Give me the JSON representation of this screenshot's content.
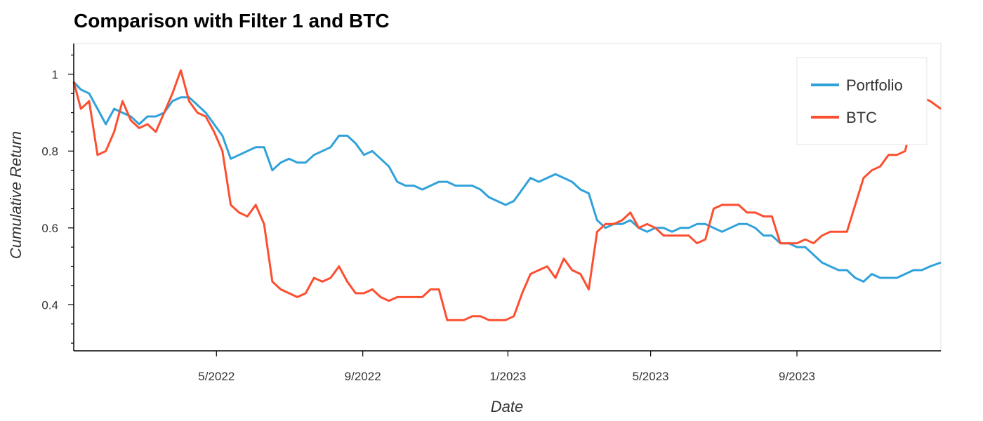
{
  "chart_data": {
    "type": "line",
    "title": "Comparison with Filter 1 and BTC",
    "xlabel": "Date",
    "ylabel": "Cumulative Return",
    "xlim": [
      "2022-01-01",
      "2023-12-31"
    ],
    "ylim": [
      0.28,
      1.08
    ],
    "x_ticks": [
      {
        "date": "2022-05-01",
        "label": "5/2022"
      },
      {
        "date": "2022-09-01",
        "label": "9/2022"
      },
      {
        "date": "2023-01-01",
        "label": "1/2023"
      },
      {
        "date": "2023-05-01",
        "label": "5/2023"
      },
      {
        "date": "2023-09-01",
        "label": "9/2023"
      }
    ],
    "y_ticks": [
      0.4,
      0.6,
      0.8,
      1
    ],
    "grid": false,
    "legend_position": "top-right",
    "series": [
      {
        "name": "Portfolio",
        "color": "#30a2da",
        "points": [
          [
            "2022-01-01",
            0.98
          ],
          [
            "2022-01-07",
            0.96
          ],
          [
            "2022-01-14",
            0.95
          ],
          [
            "2022-01-21",
            0.91
          ],
          [
            "2022-01-28",
            0.87
          ],
          [
            "2022-02-04",
            0.91
          ],
          [
            "2022-02-11",
            0.9
          ],
          [
            "2022-02-18",
            0.89
          ],
          [
            "2022-02-25",
            0.87
          ],
          [
            "2022-03-04",
            0.89
          ],
          [
            "2022-03-11",
            0.89
          ],
          [
            "2022-03-18",
            0.9
          ],
          [
            "2022-03-25",
            0.93
          ],
          [
            "2022-04-01",
            0.94
          ],
          [
            "2022-04-08",
            0.94
          ],
          [
            "2022-04-15",
            0.92
          ],
          [
            "2022-04-22",
            0.9
          ],
          [
            "2022-04-29",
            0.87
          ],
          [
            "2022-05-06",
            0.84
          ],
          [
            "2022-05-13",
            0.78
          ],
          [
            "2022-05-20",
            0.79
          ],
          [
            "2022-05-27",
            0.8
          ],
          [
            "2022-06-03",
            0.81
          ],
          [
            "2022-06-10",
            0.81
          ],
          [
            "2022-06-17",
            0.75
          ],
          [
            "2022-06-24",
            0.77
          ],
          [
            "2022-07-01",
            0.78
          ],
          [
            "2022-07-08",
            0.77
          ],
          [
            "2022-07-15",
            0.77
          ],
          [
            "2022-07-22",
            0.79
          ],
          [
            "2022-07-29",
            0.8
          ],
          [
            "2022-08-05",
            0.81
          ],
          [
            "2022-08-12",
            0.84
          ],
          [
            "2022-08-19",
            0.84
          ],
          [
            "2022-08-26",
            0.82
          ],
          [
            "2022-09-02",
            0.79
          ],
          [
            "2022-09-09",
            0.8
          ],
          [
            "2022-09-16",
            0.78
          ],
          [
            "2022-09-23",
            0.76
          ],
          [
            "2022-09-30",
            0.72
          ],
          [
            "2022-10-07",
            0.71
          ],
          [
            "2022-10-14",
            0.71
          ],
          [
            "2022-10-21",
            0.7
          ],
          [
            "2022-10-28",
            0.71
          ],
          [
            "2022-11-04",
            0.72
          ],
          [
            "2022-11-11",
            0.72
          ],
          [
            "2022-11-18",
            0.71
          ],
          [
            "2022-11-25",
            0.71
          ],
          [
            "2022-12-02",
            0.71
          ],
          [
            "2022-12-09",
            0.7
          ],
          [
            "2022-12-16",
            0.68
          ],
          [
            "2022-12-23",
            0.67
          ],
          [
            "2022-12-30",
            0.66
          ],
          [
            "2023-01-06",
            0.67
          ],
          [
            "2023-01-13",
            0.7
          ],
          [
            "2023-01-20",
            0.73
          ],
          [
            "2023-01-27",
            0.72
          ],
          [
            "2023-02-03",
            0.73
          ],
          [
            "2023-02-10",
            0.74
          ],
          [
            "2023-02-17",
            0.73
          ],
          [
            "2023-02-24",
            0.72
          ],
          [
            "2023-03-03",
            0.7
          ],
          [
            "2023-03-10",
            0.69
          ],
          [
            "2023-03-17",
            0.62
          ],
          [
            "2023-03-24",
            0.6
          ],
          [
            "2023-03-31",
            0.61
          ],
          [
            "2023-04-07",
            0.61
          ],
          [
            "2023-04-14",
            0.62
          ],
          [
            "2023-04-21",
            0.6
          ],
          [
            "2023-04-28",
            0.59
          ],
          [
            "2023-05-05",
            0.6
          ],
          [
            "2023-05-12",
            0.6
          ],
          [
            "2023-05-19",
            0.59
          ],
          [
            "2023-05-26",
            0.6
          ],
          [
            "2023-06-02",
            0.6
          ],
          [
            "2023-06-09",
            0.61
          ],
          [
            "2023-06-16",
            0.61
          ],
          [
            "2023-06-23",
            0.6
          ],
          [
            "2023-06-30",
            0.59
          ],
          [
            "2023-07-07",
            0.6
          ],
          [
            "2023-07-14",
            0.61
          ],
          [
            "2023-07-21",
            0.61
          ],
          [
            "2023-07-28",
            0.6
          ],
          [
            "2023-08-04",
            0.58
          ],
          [
            "2023-08-11",
            0.58
          ],
          [
            "2023-08-18",
            0.56
          ],
          [
            "2023-08-25",
            0.56
          ],
          [
            "2023-09-01",
            0.55
          ],
          [
            "2023-09-08",
            0.55
          ],
          [
            "2023-09-15",
            0.53
          ],
          [
            "2023-09-22",
            0.51
          ],
          [
            "2023-09-29",
            0.5
          ],
          [
            "2023-10-06",
            0.49
          ],
          [
            "2023-10-13",
            0.49
          ],
          [
            "2023-10-20",
            0.47
          ],
          [
            "2023-10-27",
            0.46
          ],
          [
            "2023-11-03",
            0.48
          ],
          [
            "2023-11-10",
            0.47
          ],
          [
            "2023-11-17",
            0.47
          ],
          [
            "2023-11-24",
            0.47
          ],
          [
            "2023-12-01",
            0.48
          ],
          [
            "2023-12-08",
            0.49
          ],
          [
            "2023-12-15",
            0.49
          ],
          [
            "2023-12-22",
            0.5
          ],
          [
            "2023-12-31",
            0.51
          ]
        ]
      },
      {
        "name": "BTC",
        "color": "#fc4f30",
        "points": [
          [
            "2022-01-01",
            0.98
          ],
          [
            "2022-01-07",
            0.91
          ],
          [
            "2022-01-14",
            0.93
          ],
          [
            "2022-01-21",
            0.79
          ],
          [
            "2022-01-28",
            0.8
          ],
          [
            "2022-02-04",
            0.85
          ],
          [
            "2022-02-11",
            0.93
          ],
          [
            "2022-02-18",
            0.88
          ],
          [
            "2022-02-25",
            0.86
          ],
          [
            "2022-03-04",
            0.87
          ],
          [
            "2022-03-11",
            0.85
          ],
          [
            "2022-03-18",
            0.9
          ],
          [
            "2022-03-25",
            0.95
          ],
          [
            "2022-04-01",
            1.01
          ],
          [
            "2022-04-08",
            0.93
          ],
          [
            "2022-04-15",
            0.9
          ],
          [
            "2022-04-22",
            0.89
          ],
          [
            "2022-04-29",
            0.85
          ],
          [
            "2022-05-06",
            0.8
          ],
          [
            "2022-05-13",
            0.66
          ],
          [
            "2022-05-20",
            0.64
          ],
          [
            "2022-05-27",
            0.63
          ],
          [
            "2022-06-03",
            0.66
          ],
          [
            "2022-06-10",
            0.61
          ],
          [
            "2022-06-17",
            0.46
          ],
          [
            "2022-06-24",
            0.44
          ],
          [
            "2022-07-01",
            0.43
          ],
          [
            "2022-07-08",
            0.42
          ],
          [
            "2022-07-15",
            0.43
          ],
          [
            "2022-07-22",
            0.47
          ],
          [
            "2022-07-29",
            0.46
          ],
          [
            "2022-08-05",
            0.47
          ],
          [
            "2022-08-12",
            0.5
          ],
          [
            "2022-08-19",
            0.46
          ],
          [
            "2022-08-26",
            0.43
          ],
          [
            "2022-09-02",
            0.43
          ],
          [
            "2022-09-09",
            0.44
          ],
          [
            "2022-09-16",
            0.42
          ],
          [
            "2022-09-23",
            0.41
          ],
          [
            "2022-09-30",
            0.42
          ],
          [
            "2022-10-07",
            0.42
          ],
          [
            "2022-10-14",
            0.42
          ],
          [
            "2022-10-21",
            0.42
          ],
          [
            "2022-10-28",
            0.44
          ],
          [
            "2022-11-04",
            0.44
          ],
          [
            "2022-11-11",
            0.36
          ],
          [
            "2022-11-18",
            0.36
          ],
          [
            "2022-11-25",
            0.36
          ],
          [
            "2022-12-02",
            0.37
          ],
          [
            "2022-12-09",
            0.37
          ],
          [
            "2022-12-16",
            0.36
          ],
          [
            "2022-12-23",
            0.36
          ],
          [
            "2022-12-30",
            0.36
          ],
          [
            "2023-01-06",
            0.37
          ],
          [
            "2023-01-13",
            0.43
          ],
          [
            "2023-01-20",
            0.48
          ],
          [
            "2023-01-27",
            0.49
          ],
          [
            "2023-02-03",
            0.5
          ],
          [
            "2023-02-10",
            0.47
          ],
          [
            "2023-02-17",
            0.52
          ],
          [
            "2023-02-24",
            0.49
          ],
          [
            "2023-03-03",
            0.48
          ],
          [
            "2023-03-10",
            0.44
          ],
          [
            "2023-03-17",
            0.59
          ],
          [
            "2023-03-24",
            0.61
          ],
          [
            "2023-03-31",
            0.61
          ],
          [
            "2023-04-07",
            0.62
          ],
          [
            "2023-04-14",
            0.64
          ],
          [
            "2023-04-21",
            0.6
          ],
          [
            "2023-04-28",
            0.61
          ],
          [
            "2023-05-05",
            0.6
          ],
          [
            "2023-05-12",
            0.58
          ],
          [
            "2023-05-19",
            0.58
          ],
          [
            "2023-05-26",
            0.58
          ],
          [
            "2023-06-02",
            0.58
          ],
          [
            "2023-06-09",
            0.56
          ],
          [
            "2023-06-16",
            0.57
          ],
          [
            "2023-06-23",
            0.65
          ],
          [
            "2023-06-30",
            0.66
          ],
          [
            "2023-07-07",
            0.66
          ],
          [
            "2023-07-14",
            0.66
          ],
          [
            "2023-07-21",
            0.64
          ],
          [
            "2023-07-28",
            0.64
          ],
          [
            "2023-08-04",
            0.63
          ],
          [
            "2023-08-11",
            0.63
          ],
          [
            "2023-08-18",
            0.56
          ],
          [
            "2023-08-25",
            0.56
          ],
          [
            "2023-09-01",
            0.56
          ],
          [
            "2023-09-08",
            0.57
          ],
          [
            "2023-09-15",
            0.56
          ],
          [
            "2023-09-22",
            0.58
          ],
          [
            "2023-09-29",
            0.59
          ],
          [
            "2023-10-06",
            0.59
          ],
          [
            "2023-10-13",
            0.59
          ],
          [
            "2023-10-20",
            0.66
          ],
          [
            "2023-10-27",
            0.73
          ],
          [
            "2023-11-03",
            0.75
          ],
          [
            "2023-11-10",
            0.76
          ],
          [
            "2023-11-17",
            0.79
          ],
          [
            "2023-11-24",
            0.79
          ],
          [
            "2023-12-01",
            0.8
          ],
          [
            "2023-12-08",
            0.9
          ],
          [
            "2023-12-15",
            0.94
          ],
          [
            "2023-12-22",
            0.93
          ],
          [
            "2023-12-31",
            0.91
          ]
        ]
      }
    ]
  }
}
